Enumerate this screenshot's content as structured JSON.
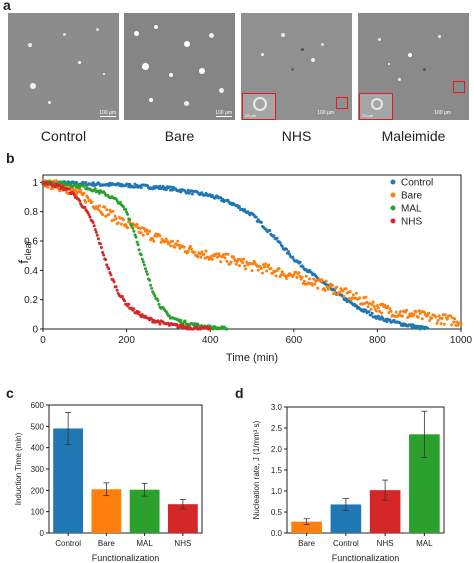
{
  "panel_labels": {
    "a": "a",
    "b": "b",
    "c": "c",
    "d": "d"
  },
  "micrographs": [
    {
      "label": "Control",
      "scale_text": "100 µm",
      "inset_scale_text": ""
    },
    {
      "label": "Bare",
      "scale_text": "100 µm",
      "inset_scale_text": ""
    },
    {
      "label": "NHS",
      "scale_text": "100 µm",
      "inset_scale_text": "25 µm"
    },
    {
      "label": "Maleimide",
      "scale_text": "100 µm",
      "inset_scale_text": "25 µm"
    }
  ],
  "chart_data": [
    {
      "type": "scatter",
      "xlabel": "Time (min)",
      "ylabel": "f",
      "ylabel_sub": "clear",
      "xlim": [
        0,
        1000
      ],
      "ylim": [
        0,
        1.05
      ],
      "xticks": [
        0,
        200,
        400,
        600,
        800,
        1000
      ],
      "yticks": [
        0,
        0.2,
        0.4,
        0.6,
        0.8,
        1
      ],
      "legend_position": "top-right",
      "series": [
        {
          "name": "Control",
          "color": "#1f77b4",
          "points": [
            [
              0,
              1.0
            ],
            [
              100,
              0.99
            ],
            [
              200,
              0.98
            ],
            [
              300,
              0.96
            ],
            [
              400,
              0.91
            ],
            [
              450,
              0.86
            ],
            [
              500,
              0.78
            ],
            [
              550,
              0.64
            ],
            [
              580,
              0.54
            ],
            [
              600,
              0.48
            ],
            [
              650,
              0.36
            ],
            [
              700,
              0.25
            ],
            [
              750,
              0.15
            ],
            [
              800,
              0.08
            ],
            [
              850,
              0.04
            ],
            [
              900,
              0.01
            ],
            [
              920,
              0.0
            ]
          ]
        },
        {
          "name": "Bare",
          "color": "#ff7f0e",
          "points": [
            [
              0,
              1.0
            ],
            [
              50,
              0.97
            ],
            [
              100,
              0.9
            ],
            [
              150,
              0.8
            ],
            [
              200,
              0.71
            ],
            [
              250,
              0.65
            ],
            [
              300,
              0.59
            ],
            [
              350,
              0.54
            ],
            [
              400,
              0.5
            ],
            [
              450,
              0.47
            ],
            [
              500,
              0.43
            ],
            [
              550,
              0.4
            ],
            [
              600,
              0.36
            ],
            [
              650,
              0.32
            ],
            [
              700,
              0.27
            ],
            [
              750,
              0.21
            ],
            [
              800,
              0.15
            ],
            [
              850,
              0.11
            ],
            [
              900,
              0.09
            ],
            [
              950,
              0.07
            ],
            [
              1000,
              0.05
            ]
          ]
        },
        {
          "name": "MAL",
          "color": "#2ca02c",
          "points": [
            [
              0,
              1.0
            ],
            [
              50,
              0.99
            ],
            [
              100,
              0.97
            ],
            [
              150,
              0.92
            ],
            [
              180,
              0.87
            ],
            [
              200,
              0.8
            ],
            [
              220,
              0.65
            ],
            [
              240,
              0.45
            ],
            [
              260,
              0.28
            ],
            [
              280,
              0.16
            ],
            [
              300,
              0.09
            ],
            [
              330,
              0.05
            ],
            [
              360,
              0.03
            ],
            [
              400,
              0.01
            ],
            [
              440,
              0.0
            ]
          ]
        },
        {
          "name": "NHS",
          "color": "#d62728",
          "points": [
            [
              0,
              1.0
            ],
            [
              30,
              0.98
            ],
            [
              60,
              0.95
            ],
            [
              80,
              0.9
            ],
            [
              100,
              0.82
            ],
            [
              120,
              0.72
            ],
            [
              140,
              0.55
            ],
            [
              160,
              0.38
            ],
            [
              180,
              0.25
            ],
            [
              200,
              0.17
            ],
            [
              220,
              0.12
            ],
            [
              250,
              0.07
            ],
            [
              300,
              0.03
            ],
            [
              350,
              0.01
            ],
            [
              400,
              0.0
            ]
          ]
        }
      ]
    },
    {
      "type": "bar",
      "ylabel": "Induction Time (min)",
      "xlabel": "Functionalization",
      "ylim": [
        0,
        600
      ],
      "yticks": [
        0,
        100,
        200,
        300,
        400,
        500,
        600
      ],
      "categories": [
        "Control",
        "Bare",
        "MAL",
        "NHS"
      ],
      "values": [
        490,
        205,
        203,
        135
      ],
      "errors": [
        75,
        30,
        30,
        22
      ],
      "colors": [
        "#1f77b4",
        "#ff7f0e",
        "#2ca02c",
        "#d62728"
      ]
    },
    {
      "type": "bar",
      "ylabel": "Nucleation rate, J (1/mm³ s)",
      "xlabel": "Functionalization",
      "ylim": [
        0,
        3
      ],
      "yticks": [
        0.0,
        0.5,
        1.0,
        1.5,
        2.0,
        2.5,
        3.0
      ],
      "categories": [
        "Bare",
        "Control",
        "NHS",
        "MAL"
      ],
      "values": [
        0.27,
        0.68,
        1.02,
        2.35
      ],
      "errors": [
        0.07,
        0.14,
        0.24,
        0.55
      ],
      "colors": [
        "#ff7f0e",
        "#1f77b4",
        "#d62728",
        "#2ca02c"
      ]
    }
  ]
}
